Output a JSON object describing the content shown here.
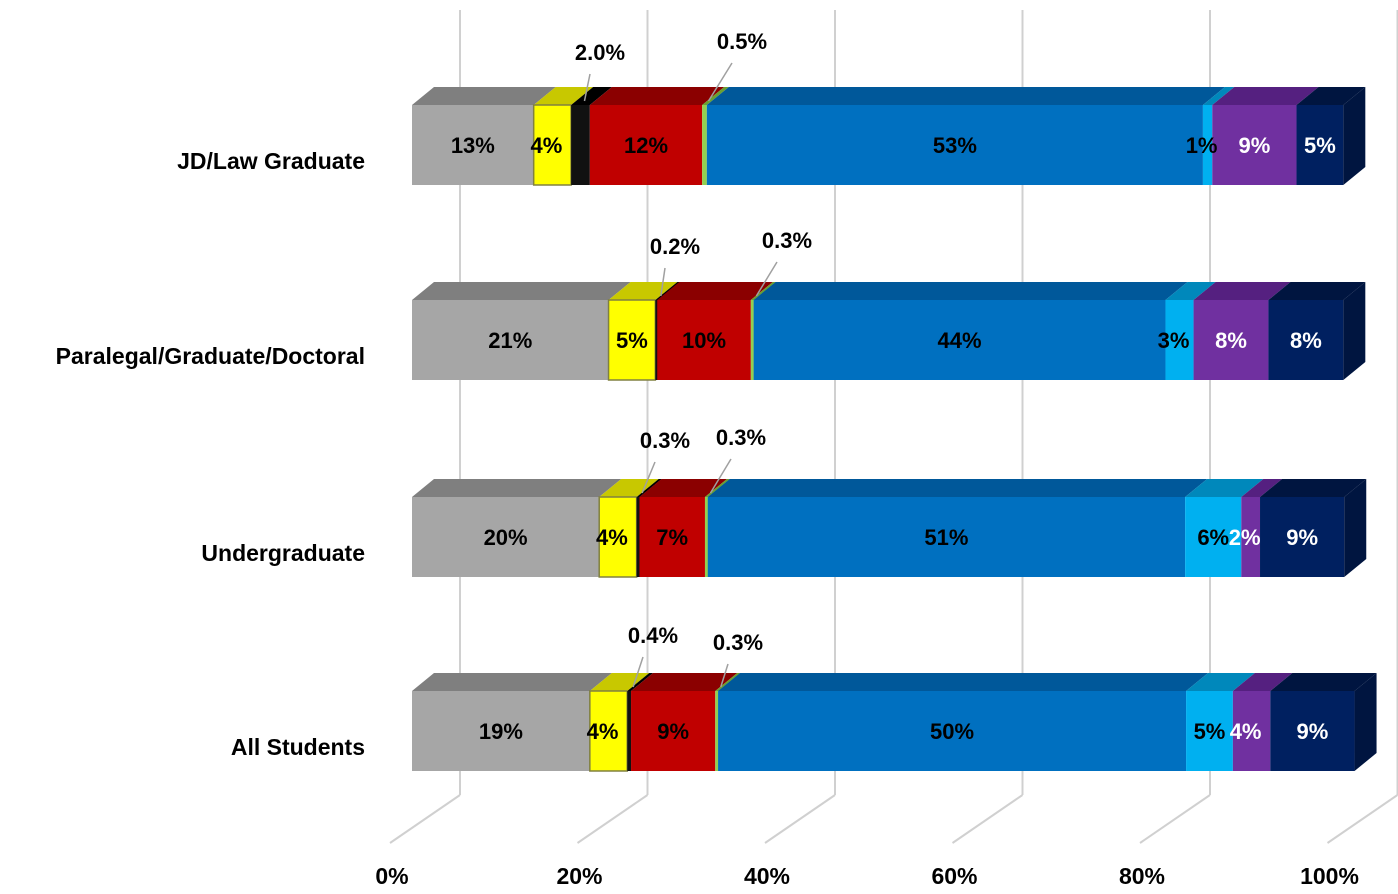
{
  "chart_data": {
    "type": "bar",
    "orientation": "horizontal",
    "stacked": true,
    "percent_stacked": true,
    "three_d": true,
    "categories": [
      "JD/Law Graduate",
      "Paralegal/Graduate/Doctoral",
      "Undergraduate",
      "All Students"
    ],
    "series": [
      {
        "color": "#a6a6a6",
        "side_color": "#7f7f7f",
        "values": [
          13,
          21,
          20,
          19
        ],
        "labels": [
          "13%",
          "21%",
          "20%",
          "19%"
        ],
        "label_color": "#000000"
      },
      {
        "color": "#ffff00",
        "side_color": "#c8c800",
        "values": [
          4,
          5,
          4,
          4
        ],
        "labels": [
          "4%",
          "5%",
          "4%",
          "4%"
        ],
        "label_color": "#000000"
      },
      {
        "color": "#111111",
        "side_color": "#000000",
        "values": [
          2.0,
          0.2,
          0.3,
          0.4
        ],
        "labels": [
          "2.0%",
          "0.2%",
          "0.3%",
          "0.4%"
        ],
        "label_color": "#000000",
        "callout": true
      },
      {
        "color": "#c00000",
        "side_color": "#8b0000",
        "values": [
          12,
          10,
          7,
          9
        ],
        "labels": [
          "12%",
          "10%",
          "7%",
          "9%"
        ],
        "label_color": "#000000"
      },
      {
        "color": "#92d050",
        "side_color": "#6aa030",
        "values": [
          0.5,
          0.3,
          0.3,
          0.3
        ],
        "labels": [
          "0.5%",
          "0.3%",
          "0.3%",
          "0.3%"
        ],
        "label_color": "#000000",
        "callout": true
      },
      {
        "color": "#0070c0",
        "side_color": "#00589a",
        "values": [
          53,
          44,
          51,
          50
        ],
        "labels": [
          "53%",
          "44%",
          "51%",
          "50%"
        ],
        "label_color": "#000000"
      },
      {
        "color": "#00b0f0",
        "side_color": "#0088bb",
        "values": [
          1,
          3,
          6,
          5
        ],
        "labels": [
          "1%",
          "3%",
          "6%",
          "5%"
        ],
        "label_color": "#000000"
      },
      {
        "color": "#7030a0",
        "side_color": "#552080",
        "values": [
          9,
          8,
          2,
          4
        ],
        "labels": [
          "9%",
          "8%",
          "2%",
          "4%"
        ],
        "label_color": "#ffffff"
      },
      {
        "color": "#002060",
        "side_color": "#001540",
        "values": [
          5,
          8,
          9,
          9
        ],
        "labels": [
          "5%",
          "8%",
          "9%",
          "9%"
        ],
        "label_color": "#ffffff"
      }
    ],
    "x_ticks": [
      "0%",
      "20%",
      "40%",
      "60%",
      "80%",
      "100%"
    ],
    "xlim": [
      0,
      100
    ],
    "grid": true,
    "legend": "none",
    "title": "",
    "xlabel": "",
    "ylabel": ""
  }
}
